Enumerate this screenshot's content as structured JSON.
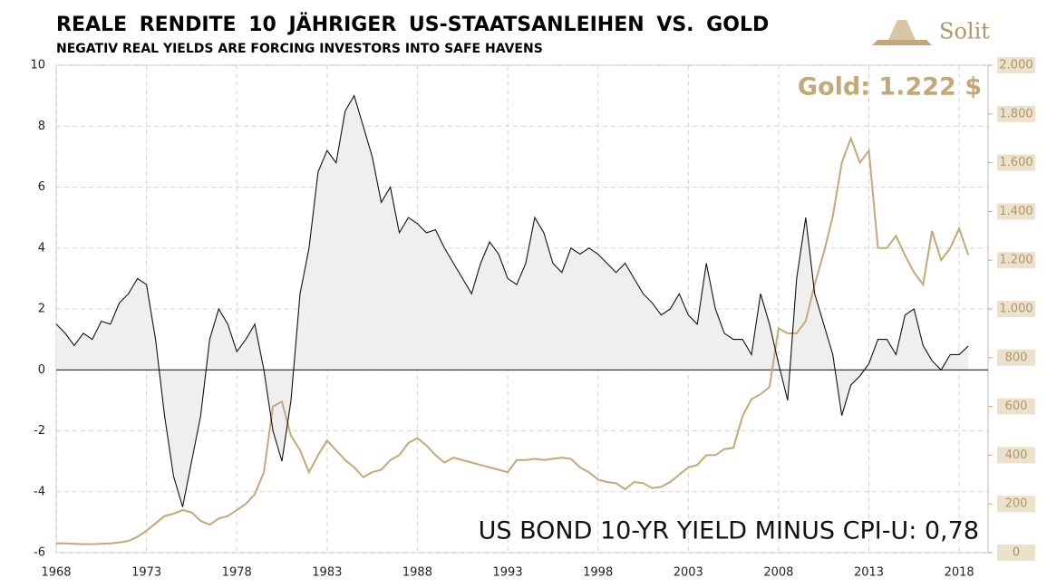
{
  "chart_data": {
    "type": "line",
    "title": "REALE RENDITE 10 JÄHRIGER US-STAATSANLEIHEN VS. GOLD",
    "subtitle": "NEGATIV REAL YIELDS ARE FORCING INVESTORS INTO SAFE HAVENS",
    "brand": "Solit",
    "annotations": [
      "Gold: 1.222 $",
      "US BOND 10-YR YIELD MINUS CPI-U: 0,78"
    ],
    "x": [
      1968,
      1968.5,
      1969,
      1969.5,
      1970,
      1970.5,
      1971,
      1971.5,
      1972,
      1972.5,
      1973,
      1973.5,
      1974,
      1974.5,
      1975,
      1975.5,
      1976,
      1976.5,
      1977,
      1977.5,
      1978,
      1978.5,
      1979,
      1979.5,
      1980,
      1980.5,
      1981,
      1981.5,
      1982,
      1982.5,
      1983,
      1983.5,
      1984,
      1984.5,
      1985,
      1985.5,
      1986,
      1986.5,
      1987,
      1987.5,
      1988,
      1988.5,
      1989,
      1989.5,
      1990,
      1990.5,
      1991,
      1991.5,
      1992,
      1992.5,
      1993,
      1993.5,
      1994,
      1994.5,
      1995,
      1995.5,
      1996,
      1996.5,
      1997,
      1997.5,
      1998,
      1998.5,
      1999,
      1999.5,
      2000,
      2000.5,
      2001,
      2001.5,
      2002,
      2002.5,
      2003,
      2003.5,
      2004,
      2004.5,
      2005,
      2005.5,
      2006,
      2006.5,
      2007,
      2007.5,
      2008,
      2008.5,
      2009,
      2009.5,
      2010,
      2010.5,
      2011,
      2011.5,
      2012,
      2012.5,
      2013,
      2013.5,
      2014,
      2014.5,
      2015,
      2015.5,
      2016,
      2016.5,
      2017,
      2017.5,
      2018,
      2018.5
    ],
    "series": [
      {
        "name": "US Bond 10-yr yield minus CPI-U",
        "color": "#111111",
        "fill": "#efefef",
        "axis": "y",
        "values": [
          1.5,
          1.2,
          0.8,
          1.2,
          1.0,
          1.6,
          1.5,
          2.2,
          2.5,
          3.0,
          2.8,
          1.0,
          -1.5,
          -3.5,
          -4.5,
          -3.0,
          -1.5,
          1.0,
          2.0,
          1.5,
          0.6,
          1.0,
          1.5,
          0.0,
          -2.0,
          -3.0,
          -1.0,
          2.5,
          4.0,
          6.5,
          7.2,
          6.8,
          8.5,
          9.0,
          8.0,
          7.0,
          5.5,
          6.0,
          4.5,
          5.0,
          4.8,
          4.5,
          4.6,
          4.0,
          3.5,
          3.0,
          2.5,
          3.5,
          4.2,
          3.8,
          3.0,
          2.8,
          3.5,
          5.0,
          4.5,
          3.5,
          3.2,
          4.0,
          3.8,
          4.0,
          3.8,
          3.5,
          3.2,
          3.5,
          3.0,
          2.5,
          2.2,
          1.8,
          2.0,
          2.5,
          1.8,
          1.5,
          3.5,
          2.0,
          1.2,
          1.0,
          1.0,
          0.5,
          2.5,
          1.5,
          0.2,
          -1.0,
          3.0,
          5.0,
          2.5,
          1.5,
          0.5,
          -1.5,
          -0.5,
          -0.2,
          0.2,
          1.0,
          1.0,
          0.5,
          1.8,
          2.0,
          0.8,
          0.3,
          0.0,
          0.5,
          0.5,
          0.78
        ]
      },
      {
        "name": "Gold",
        "color": "#c5a877",
        "axis": "y2",
        "values": [
          38,
          38,
          36,
          35,
          35,
          36,
          38,
          42,
          48,
          65,
          90,
          120,
          150,
          160,
          175,
          165,
          130,
          115,
          140,
          150,
          175,
          200,
          240,
          330,
          600,
          620,
          480,
          420,
          330,
          400,
          460,
          420,
          380,
          350,
          310,
          330,
          340,
          380,
          400,
          450,
          470,
          440,
          400,
          370,
          390,
          380,
          370,
          360,
          350,
          340,
          330,
          380,
          380,
          385,
          380,
          385,
          390,
          385,
          350,
          330,
          300,
          290,
          285,
          260,
          290,
          285,
          265,
          270,
          290,
          320,
          350,
          360,
          400,
          400,
          425,
          430,
          560,
          630,
          650,
          680,
          920,
          900,
          900,
          950,
          1100,
          1230,
          1380,
          1600,
          1700,
          1600,
          1650,
          1250,
          1250,
          1300,
          1220,
          1150,
          1100,
          1320,
          1200,
          1250,
          1330,
          1222
        ]
      }
    ],
    "xlim": [
      1968,
      2019.6
    ],
    "xticks": [
      1968,
      1973,
      1978,
      1983,
      1988,
      1993,
      1998,
      2003,
      2008,
      2013,
      2018
    ],
    "ylim": [
      -6,
      10
    ],
    "yticks": [
      -6,
      -4,
      -2,
      0,
      2,
      4,
      6,
      8,
      10
    ],
    "y2lim": [
      0,
      2000
    ],
    "y2ticks": [
      {
        "value": 2000,
        "label": "2.000"
      },
      {
        "value": 1800,
        "label": "1.800"
      },
      {
        "value": 1600,
        "label": "1.600"
      },
      {
        "value": 1400,
        "label": "1.400"
      },
      {
        "value": 1200,
        "label": "1.200"
      },
      {
        "value": 1000,
        "label": "1.000"
      },
      800,
      600,
      400,
      200,
      0
    ],
    "grid": true
  }
}
